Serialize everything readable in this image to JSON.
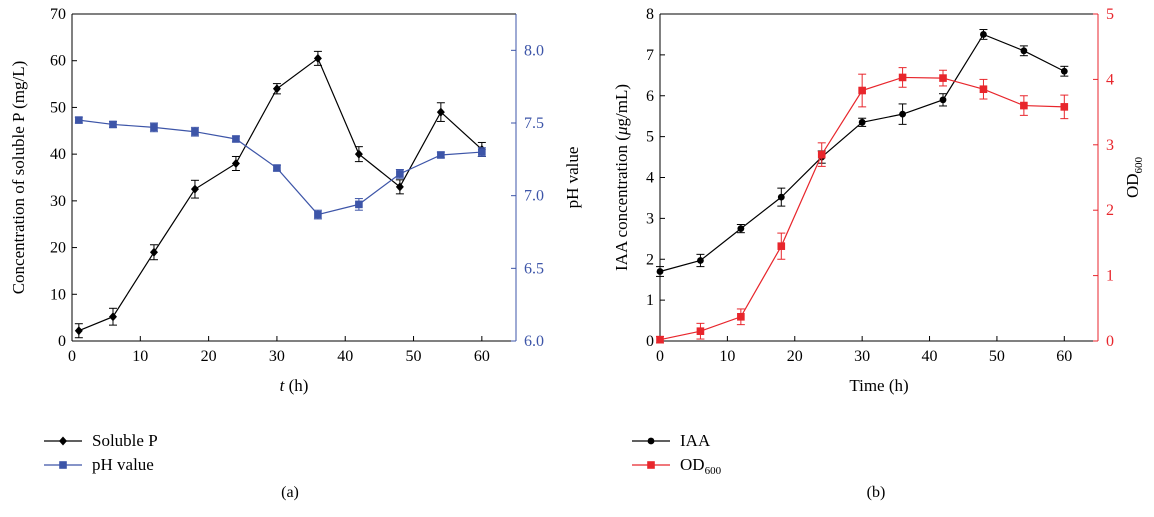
{
  "chart_data": [
    {
      "type": "line",
      "panel_label": "(a)",
      "xlabel_var": "t",
      "xlabel_unit": " (h)",
      "ylabel": "Concentration of soluble P (mg/L)",
      "y2label": "pH value",
      "xlim": [
        0,
        65
      ],
      "ylim": [
        0,
        70
      ],
      "y2lim": [
        6.0,
        8.25
      ],
      "xticks": [
        0,
        10,
        20,
        30,
        40,
        50,
        60
      ],
      "yticks": [
        0,
        10,
        20,
        30,
        40,
        50,
        60,
        70
      ],
      "y2ticks": [
        "6.0",
        "6.5",
        "7.0",
        "7.5",
        "8.0"
      ],
      "series": [
        {
          "name": "Soluble P",
          "axis": "left",
          "color": "#000000",
          "marker": "diamond",
          "x": [
            1,
            6,
            12,
            18,
            24,
            30,
            36,
            42,
            48,
            54,
            60
          ],
          "y": [
            2.2,
            5.2,
            19.0,
            32.5,
            38.0,
            54.0,
            60.5,
            40.0,
            33.0,
            49.0,
            41.0
          ],
          "err": [
            1.5,
            1.8,
            1.6,
            1.9,
            1.5,
            1.1,
            1.5,
            1.6,
            1.5,
            2.0,
            1.5
          ]
        },
        {
          "name": "pH value",
          "axis": "right",
          "color": "#3d55a8",
          "marker": "square",
          "x": [
            1,
            6,
            12,
            18,
            24,
            30,
            36,
            42,
            48,
            54,
            60
          ],
          "y": [
            7.52,
            7.49,
            7.47,
            7.44,
            7.39,
            7.19,
            6.87,
            6.94,
            7.15,
            7.28,
            7.3
          ],
          "err": [
            0.02,
            0.02,
            0.03,
            0.03,
            0.02,
            0.02,
            0.03,
            0.04,
            0.03,
            0.02,
            0.03
          ]
        }
      ]
    },
    {
      "type": "line",
      "panel_label": "(b)",
      "xlabel": "Time (h)",
      "ylabel_pre": "IAA concentration (",
      "ylabel_mu": "μ",
      "ylabel_post": "g/mL)",
      "y2label_main": "OD",
      "y2label_sub": "600",
      "xlim": [
        0,
        65
      ],
      "ylim": [
        0,
        8
      ],
      "y2lim": [
        0,
        5
      ],
      "xticks": [
        0,
        10,
        20,
        30,
        40,
        50,
        60
      ],
      "yticks": [
        0,
        1,
        2,
        3,
        4,
        5,
        6,
        7,
        8
      ],
      "y2ticks": [
        0,
        1,
        2,
        3,
        4,
        5
      ],
      "series": [
        {
          "name": "IAA",
          "axis": "left",
          "color": "#000000",
          "marker": "circle",
          "x": [
            0,
            6,
            12,
            18,
            24,
            30,
            36,
            42,
            48,
            54,
            60
          ],
          "y": [
            1.7,
            1.97,
            2.75,
            3.52,
            4.5,
            5.35,
            5.55,
            5.9,
            7.5,
            7.1,
            6.6
          ],
          "err": [
            0.12,
            0.15,
            0.1,
            0.22,
            0.15,
            0.1,
            0.25,
            0.15,
            0.12,
            0.12,
            0.12
          ]
        },
        {
          "name_main": "OD",
          "name_sub": "600",
          "axis": "right",
          "color": "#e8262c",
          "marker": "square",
          "x": [
            0,
            6,
            12,
            18,
            24,
            30,
            36,
            42,
            48,
            54,
            60
          ],
          "y": [
            0.02,
            0.15,
            0.37,
            1.45,
            2.85,
            3.83,
            4.03,
            4.02,
            3.85,
            3.6,
            3.58
          ],
          "err": [
            0.05,
            0.12,
            0.12,
            0.2,
            0.18,
            0.25,
            0.15,
            0.12,
            0.15,
            0.15,
            0.18
          ]
        }
      ]
    }
  ]
}
